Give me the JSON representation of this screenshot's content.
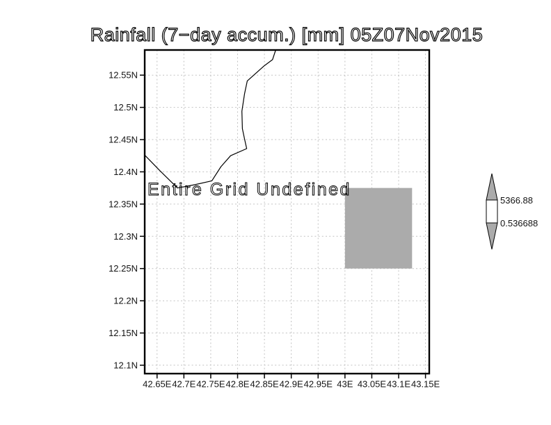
{
  "title": "Rainfall (7−day accum.) [mm] 05Z07Nov2015",
  "chart_data": {
    "type": "map",
    "title": "Rainfall (7−day accum.) [mm] 05Z07Nov2015",
    "units": "mm",
    "valid_time": "05Z07Nov2015",
    "grid": "dotted",
    "gridline_color": "#c2c2c2",
    "x_axis": {
      "range": [
        42.627,
        43.157
      ],
      "ticks": [
        {
          "value": 42.65,
          "label": "42.65E"
        },
        {
          "value": 42.7,
          "label": "42.7E"
        },
        {
          "value": 42.75,
          "label": "42.75E"
        },
        {
          "value": 42.8,
          "label": "42.8E"
        },
        {
          "value": 42.85,
          "label": "42.85E"
        },
        {
          "value": 42.9,
          "label": "42.9E"
        },
        {
          "value": 42.95,
          "label": "42.95E"
        },
        {
          "value": 43.0,
          "label": "43E"
        },
        {
          "value": 43.05,
          "label": "43.05E"
        },
        {
          "value": 43.1,
          "label": "43.1E"
        },
        {
          "value": 43.15,
          "label": "43.15E"
        }
      ]
    },
    "y_axis": {
      "range": [
        12.087,
        12.589
      ],
      "ticks": [
        {
          "value": 12.55,
          "label": "12.55N"
        },
        {
          "value": 12.5,
          "label": "12.5N"
        },
        {
          "value": 12.45,
          "label": "12.45N"
        },
        {
          "value": 12.4,
          "label": "12.4N"
        },
        {
          "value": 12.35,
          "label": "12.35N"
        },
        {
          "value": 12.3,
          "label": "12.3N"
        },
        {
          "value": 12.25,
          "label": "12.25N"
        },
        {
          "value": 12.2,
          "label": "12.2N"
        },
        {
          "value": 12.15,
          "label": "12.15N"
        },
        {
          "value": 12.1,
          "label": "12.1N"
        }
      ]
    },
    "undefined_region": {
      "label": "Entire Grid Undefined"
    },
    "coastline": [
      [
        42.627,
        12.426
      ],
      [
        42.655,
        12.402
      ],
      [
        42.688,
        12.375
      ],
      [
        42.72,
        12.38
      ],
      [
        42.752,
        12.386
      ],
      [
        42.769,
        12.408
      ],
      [
        42.787,
        12.425
      ],
      [
        42.817,
        12.436
      ],
      [
        42.813,
        12.451
      ],
      [
        42.809,
        12.467
      ],
      [
        42.808,
        12.494
      ],
      [
        42.813,
        12.521
      ],
      [
        42.818,
        12.541
      ],
      [
        42.849,
        12.564
      ],
      [
        42.865,
        12.574
      ],
      [
        42.871,
        12.589
      ]
    ],
    "shaded_cell": {
      "lon": [
        43.0,
        43.125
      ],
      "lat": [
        12.25,
        12.375
      ],
      "color": "#ababab"
    },
    "colorbar": {
      "min": 0.536688,
      "max": 5366.88,
      "min_label": "0.536688",
      "max_label": "5366.88",
      "arrow_color": "#ababab",
      "box_color": "#ffffff"
    }
  }
}
